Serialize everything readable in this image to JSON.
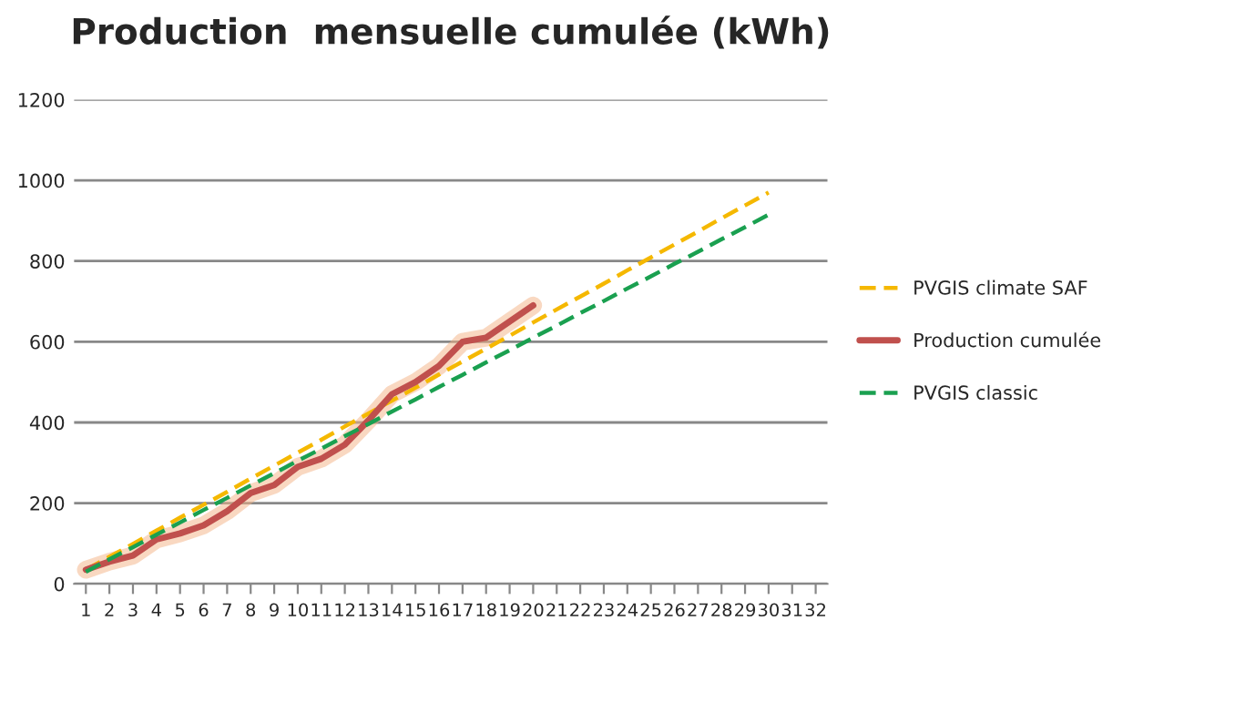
{
  "chart_data": {
    "type": "line",
    "title": "Production  mensuelle cumulée (kWh)",
    "categories": [
      "1",
      "2",
      "3",
      "4",
      "5",
      "6",
      "7",
      "8",
      "9",
      "10",
      "11",
      "12",
      "13",
      "14",
      "15",
      "16",
      "17",
      "18",
      "19",
      "20",
      "21",
      "22",
      "23",
      "24",
      "25",
      "26",
      "27",
      "28",
      "29",
      "30",
      "31",
      "32"
    ],
    "series": [
      {
        "name": "PVGIS climate SAF",
        "color": "#f5b800",
        "line_style": "dashed",
        "values": [
          35,
          67,
          99,
          132,
          164,
          196,
          228,
          261,
          293,
          325,
          357,
          390,
          422,
          454,
          486,
          519,
          551,
          583,
          615,
          648,
          680,
          712,
          744,
          777,
          809,
          841,
          873,
          906,
          938,
          970,
          null,
          null
        ]
      },
      {
        "name": "Production cumulée",
        "color": "#c0504d",
        "line_style": "solid",
        "values": [
          35,
          55,
          70,
          110,
          125,
          145,
          180,
          225,
          245,
          290,
          310,
          345,
          405,
          470,
          500,
          540,
          600,
          610,
          650,
          690,
          null,
          null,
          null,
          null,
          null,
          null,
          null,
          null,
          null,
          null,
          null,
          null
        ]
      },
      {
        "name": "PVGIS classic",
        "color": "#1aa050",
        "line_style": "dashed",
        "values": [
          30,
          61,
          91,
          122,
          152,
          183,
          213,
          244,
          274,
          305,
          335,
          366,
          396,
          427,
          457,
          488,
          518,
          549,
          579,
          610,
          640,
          671,
          701,
          732,
          762,
          793,
          823,
          854,
          884,
          915,
          null,
          null
        ]
      }
    ],
    "ylim": [
      0,
      1200
    ],
    "yticks": [
      0,
      200,
      400,
      600,
      800,
      1000,
      1200
    ],
    "grid": "y",
    "legend": "right",
    "marker": "none"
  }
}
